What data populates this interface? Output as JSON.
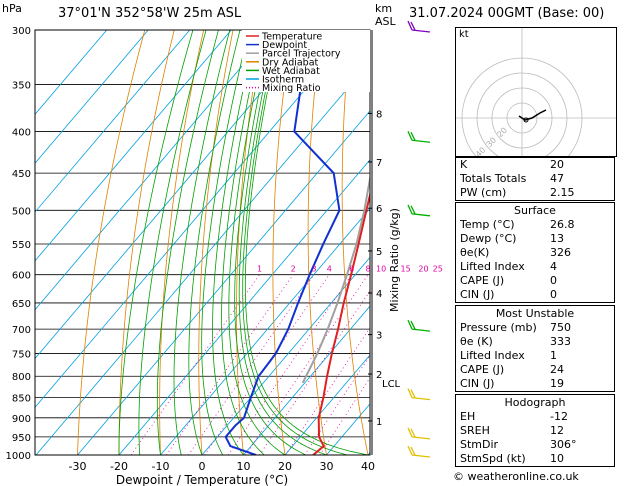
{
  "header": {
    "unit_pressure": "hPa",
    "location": "37°01'N  352°58'W  25m  ASL",
    "unit_height": "km",
    "unit_height_sub": "ASL",
    "date": "31.07.2024  00GMT  (Base: 00)"
  },
  "chart_data": {
    "type": "line",
    "title": "",
    "xlabel": "Dewpoint / Temperature (°C)",
    "ylabel_right": "Mixing Ratio (g/kg)",
    "ylabel_left": "hPa",
    "x_ticks": [
      -30,
      -20,
      -10,
      0,
      10,
      20,
      30,
      40
    ],
    "pressure_levels": [
      300,
      350,
      400,
      450,
      500,
      550,
      600,
      650,
      700,
      750,
      800,
      850,
      900,
      950,
      1000
    ],
    "height_km_labels": [
      {
        "km": "1",
        "p": 908
      },
      {
        "km": "2",
        "p": 795
      },
      {
        "km": "3",
        "p": 711
      },
      {
        "km": "4",
        "p": 632
      },
      {
        "km": "5",
        "p": 561
      },
      {
        "km": "6",
        "p": 497
      },
      {
        "km": "7",
        "p": 436
      },
      {
        "km": "8",
        "p": 380
      }
    ],
    "lcl_label": "LCL",
    "lcl_p": 815,
    "mixing_ratios": [
      "1",
      "2",
      "3",
      "4",
      "6",
      "8",
      "10",
      "15",
      "20",
      "25"
    ],
    "legend": [
      "Temperature",
      "Dewpoint",
      "Parcel Trajectory",
      "Dry Adiabat",
      "Wet Adiabat",
      "Isotherm",
      "Mixing Ratio"
    ],
    "colors": {
      "temperature": "#e02020",
      "dewpoint": "#1030d0",
      "parcel": "#a0a0a0",
      "dry_adiabat": "#e08000",
      "wet_adiabat": "#00a000",
      "isotherm": "#00a0e0",
      "mixing_ratio": "#e000a0",
      "wind": "#00b000",
      "wind_lower": "#e0c000"
    },
    "temperature_profile": [
      {
        "p": 1000,
        "t": 26.8
      },
      {
        "p": 975,
        "t": 27.5
      },
      {
        "p": 950,
        "t": 24.5
      },
      {
        "p": 900,
        "t": 20.5
      },
      {
        "p": 850,
        "t": 17.5
      },
      {
        "p": 800,
        "t": 14.0
      },
      {
        "p": 750,
        "t": 10.5
      },
      {
        "p": 700,
        "t": 7.0
      },
      {
        "p": 650,
        "t": 3.0
      },
      {
        "p": 600,
        "t": -1.0
      },
      {
        "p": 550,
        "t": -5.5
      },
      {
        "p": 500,
        "t": -10.5
      },
      {
        "p": 450,
        "t": -16.0
      },
      {
        "p": 400,
        "t": -22.0
      },
      {
        "p": 350,
        "t": -29.0
      },
      {
        "p": 300,
        "t": -37.0
      }
    ],
    "dewpoint_profile": [
      {
        "p": 1000,
        "t": 13.0
      },
      {
        "p": 975,
        "t": 5.0
      },
      {
        "p": 950,
        "t": 2.0
      },
      {
        "p": 920,
        "t": 2.0
      },
      {
        "p": 900,
        "t": 2.5
      },
      {
        "p": 850,
        "t": 0.0
      },
      {
        "p": 800,
        "t": -2.5
      },
      {
        "p": 750,
        "t": -3.0
      },
      {
        "p": 700,
        "t": -5.0
      },
      {
        "p": 650,
        "t": -8.0
      },
      {
        "p": 600,
        "t": -11.0
      },
      {
        "p": 550,
        "t": -14.0
      },
      {
        "p": 500,
        "t": -17.0
      },
      {
        "p": 450,
        "t": -26.0
      },
      {
        "p": 400,
        "t": -44.0
      },
      {
        "p": 350,
        "t": -52.0
      },
      {
        "p": 300,
        "t": -60.0
      }
    ],
    "parcel_profile": [
      {
        "p": 815,
        "t": 9.5
      },
      {
        "p": 750,
        "t": 7.0
      },
      {
        "p": 700,
        "t": 4.5
      },
      {
        "p": 650,
        "t": 1.5
      },
      {
        "p": 600,
        "t": -2.0
      },
      {
        "p": 550,
        "t": -6.0
      },
      {
        "p": 500,
        "t": -11.0
      },
      {
        "p": 450,
        "t": -17.0
      },
      {
        "p": 400,
        "t": -24.0
      },
      {
        "p": 350,
        "t": -32.0
      },
      {
        "p": 300,
        "t": -41.0
      }
    ],
    "wind_barbs_p": [
      300,
      410,
      505,
      700,
      850,
      950,
      1000
    ]
  },
  "hodograph": {
    "label": "kt",
    "ring_labels": [
      "20",
      "30",
      "40"
    ]
  },
  "indices": [
    {
      "label": "K",
      "value": "20"
    },
    {
      "label": "Totals Totals",
      "value": "47"
    },
    {
      "label": "PW (cm)",
      "value": "2.15"
    }
  ],
  "surface": {
    "title": "Surface",
    "rows": [
      {
        "label": "Temp (°C)",
        "value": "26.8"
      },
      {
        "label": "Dewp (°C)",
        "value": "13"
      },
      {
        "label": "θe(K)",
        "value": "326"
      },
      {
        "label": "Lifted Index",
        "value": "4"
      },
      {
        "label": "CAPE (J)",
        "value": "0"
      },
      {
        "label": "CIN (J)",
        "value": "0"
      }
    ]
  },
  "most_unstable": {
    "title": "Most Unstable",
    "rows": [
      {
        "label": "Pressure (mb)",
        "value": "750"
      },
      {
        "label": "θe (K)",
        "value": "333"
      },
      {
        "label": "Lifted Index",
        "value": "1"
      },
      {
        "label": "CAPE (J)",
        "value": "24"
      },
      {
        "label": "CIN (J)",
        "value": "19"
      }
    ]
  },
  "hodograph_table": {
    "title": "Hodograph",
    "rows": [
      {
        "label": "EH",
        "value": "-12"
      },
      {
        "label": "SREH",
        "value": "12"
      },
      {
        "label": "StmDir",
        "value": "306°"
      },
      {
        "label": "StmSpd (kt)",
        "value": "10"
      }
    ]
  },
  "footer": "© weatheronline.co.uk"
}
